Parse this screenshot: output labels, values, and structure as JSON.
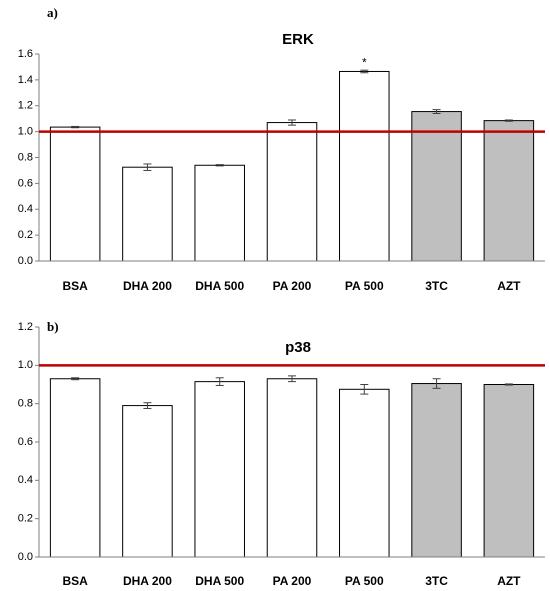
{
  "chart_data": [
    {
      "panel_label": "a)",
      "type": "bar",
      "title": "ERK",
      "categories": [
        "BSA",
        "DHA 200",
        "DHA 500",
        "PA 200",
        "PA 500",
        "3TC",
        "AZT"
      ],
      "values": [
        1.035,
        0.725,
        0.74,
        1.07,
        1.465,
        1.155,
        1.085
      ],
      "errors": [
        0.005,
        0.025,
        0.005,
        0.02,
        0.01,
        0.015,
        0.005
      ],
      "bar_colors": [
        "#ffffff",
        "#ffffff",
        "#ffffff",
        "#ffffff",
        "#ffffff",
        "#bfbfbf",
        "#bfbfbf"
      ],
      "annotations": [
        "",
        "",
        "",
        "",
        "*",
        "",
        ""
      ],
      "reference_line": 1.0,
      "reference_color": "#c00000",
      "ylim": [
        0,
        1.6
      ],
      "yticks": [
        "0.0",
        "0.2",
        "0.4",
        "0.6",
        "0.8",
        "1.0",
        "1.2",
        "1.4",
        "1.6"
      ],
      "grid": false
    },
    {
      "panel_label": "b)",
      "type": "bar",
      "title": "p38",
      "categories": [
        "BSA",
        "DHA 200",
        "DHA 500",
        "PA 200",
        "PA 500",
        "3TC",
        "AZT"
      ],
      "values": [
        0.93,
        0.79,
        0.915,
        0.93,
        0.875,
        0.905,
        0.9
      ],
      "errors": [
        0.005,
        0.015,
        0.02,
        0.015,
        0.025,
        0.025,
        0.003
      ],
      "bar_colors": [
        "#ffffff",
        "#ffffff",
        "#ffffff",
        "#ffffff",
        "#ffffff",
        "#bfbfbf",
        "#bfbfbf"
      ],
      "annotations": [
        "",
        "",
        "",
        "",
        "",
        "",
        ""
      ],
      "reference_line": 1.0,
      "reference_color": "#c00000",
      "ylim": [
        0,
        1.2
      ],
      "yticks": [
        "0.0",
        "0.2",
        "0.4",
        "0.6",
        "0.8",
        "1.0",
        "1.2"
      ],
      "grid": false
    }
  ]
}
